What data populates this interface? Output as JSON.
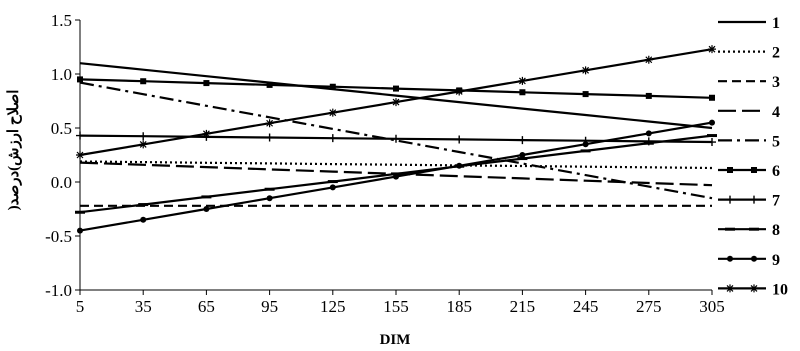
{
  "chart_data": {
    "type": "line",
    "title": "",
    "xlabel": "DIM",
    "ylabel": "اصلاح ارزش)درصد(",
    "x": [
      5,
      35,
      65,
      95,
      125,
      155,
      185,
      215,
      245,
      275,
      305
    ],
    "xlim": [
      5,
      305
    ],
    "ylim": [
      -1.0,
      1.5
    ],
    "y_ticks": [
      "-1.0",
      "-0.5",
      "0.0",
      "0.5",
      "1.0",
      "1.5"
    ],
    "x_ticks": [
      "5",
      "35",
      "65",
      "95",
      "125",
      "155",
      "185",
      "215",
      "245",
      "275",
      "305"
    ],
    "grid": false,
    "legend_position": "right",
    "series": [
      {
        "name": "1",
        "style": "solid",
        "marker": "none",
        "values": [
          1.1,
          1.04,
          0.98,
          0.92,
          0.86,
          0.8,
          0.74,
          0.68,
          0.62,
          0.56,
          0.5
        ]
      },
      {
        "name": "2",
        "style": "dotted",
        "marker": "none",
        "values": [
          0.19,
          0.184,
          0.178,
          0.172,
          0.166,
          0.16,
          0.154,
          0.148,
          0.142,
          0.136,
          0.13
        ]
      },
      {
        "name": "3",
        "style": "dashed",
        "marker": "none",
        "values": [
          -0.22,
          -0.22,
          -0.22,
          -0.22,
          -0.22,
          -0.22,
          -0.22,
          -0.22,
          -0.22,
          -0.22,
          -0.22
        ]
      },
      {
        "name": "4",
        "style": "longdash",
        "marker": "none",
        "values": [
          0.18,
          0.159,
          0.138,
          0.117,
          0.096,
          0.075,
          0.054,
          0.033,
          0.012,
          -0.009,
          -0.03
        ]
      },
      {
        "name": "5",
        "style": "dashdot",
        "marker": "none",
        "values": [
          0.92,
          0.813,
          0.706,
          0.599,
          0.492,
          0.385,
          0.278,
          0.171,
          0.064,
          -0.043,
          -0.15
        ]
      },
      {
        "name": "6",
        "style": "solid",
        "marker": "square",
        "values": [
          0.95,
          0.933,
          0.916,
          0.899,
          0.882,
          0.865,
          0.848,
          0.831,
          0.814,
          0.797,
          0.78
        ]
      },
      {
        "name": "7",
        "style": "solid",
        "marker": "plus",
        "values": [
          0.43,
          0.424,
          0.418,
          0.412,
          0.406,
          0.4,
          0.394,
          0.388,
          0.382,
          0.376,
          0.37
        ]
      },
      {
        "name": "8",
        "style": "solid",
        "marker": "dash",
        "values": [
          -0.28,
          -0.209,
          -0.138,
          -0.067,
          0.004,
          0.075,
          0.146,
          0.217,
          0.288,
          0.359,
          0.43
        ]
      },
      {
        "name": "9",
        "style": "solid",
        "marker": "circle",
        "values": [
          -0.45,
          -0.35,
          -0.25,
          -0.15,
          -0.05,
          0.05,
          0.15,
          0.25,
          0.35,
          0.45,
          0.55
        ]
      },
      {
        "name": "10",
        "style": "solid",
        "marker": "star",
        "values": [
          0.25,
          0.348,
          0.446,
          0.544,
          0.642,
          0.74,
          0.838,
          0.936,
          1.034,
          1.132,
          1.23
        ]
      }
    ]
  }
}
